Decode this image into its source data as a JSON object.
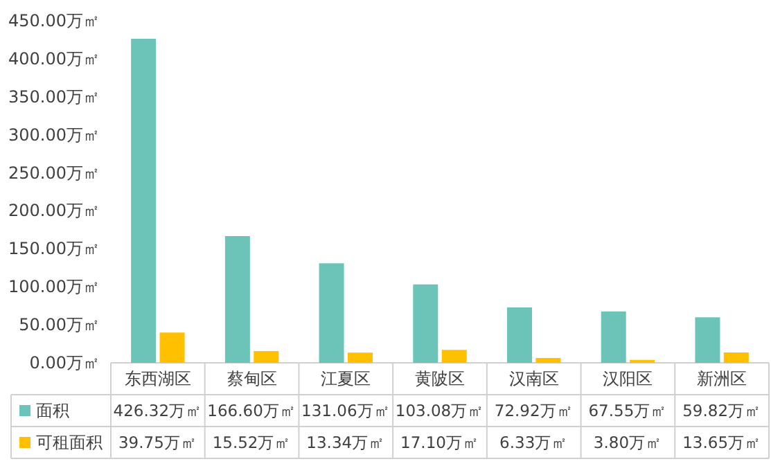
{
  "chart_data": {
    "type": "bar",
    "categories": [
      "东西湖区",
      "蔡甸区",
      "江夏区",
      "黄陂区",
      "汉南区",
      "汉阳区",
      "新洲区"
    ],
    "series": [
      {
        "name": "面积",
        "color": "#6cc4b8",
        "values": [
          426.32,
          166.6,
          131.06,
          103.08,
          72.92,
          67.55,
          59.82
        ],
        "value_labels": [
          "426.32万㎡",
          "166.60万㎡",
          "131.06万㎡",
          "103.08万㎡",
          "72.92万㎡",
          "67.55万㎡",
          "59.82万㎡"
        ]
      },
      {
        "name": "可租面积",
        "color": "#ffc000",
        "values": [
          39.75,
          15.52,
          13.34,
          17.1,
          6.33,
          3.8,
          13.65
        ],
        "value_labels": [
          "39.75万㎡",
          "15.52万㎡",
          "13.34万㎡",
          "17.10万㎡",
          "6.33万㎡",
          "3.80万㎡",
          "13.65万㎡"
        ]
      }
    ],
    "ylim": [
      0,
      450
    ],
    "legend": "bottom",
    "yticks": [
      {
        "value": 0,
        "label": "0.00万㎡"
      },
      {
        "value": 50,
        "label": "50.00万㎡"
      },
      {
        "value": 100,
        "label": "100.00万㎡"
      },
      {
        "value": 150,
        "label": "150.00万㎡"
      },
      {
        "value": 200,
        "label": "200.00万㎡"
      },
      {
        "value": 250,
        "label": "250.00万㎡"
      },
      {
        "value": 300,
        "label": "300.00万㎡"
      },
      {
        "value": 350,
        "label": "350.00万㎡"
      },
      {
        "value": 400,
        "label": "400.00万㎡"
      },
      {
        "value": 450,
        "label": "450.00万㎡"
      }
    ]
  }
}
